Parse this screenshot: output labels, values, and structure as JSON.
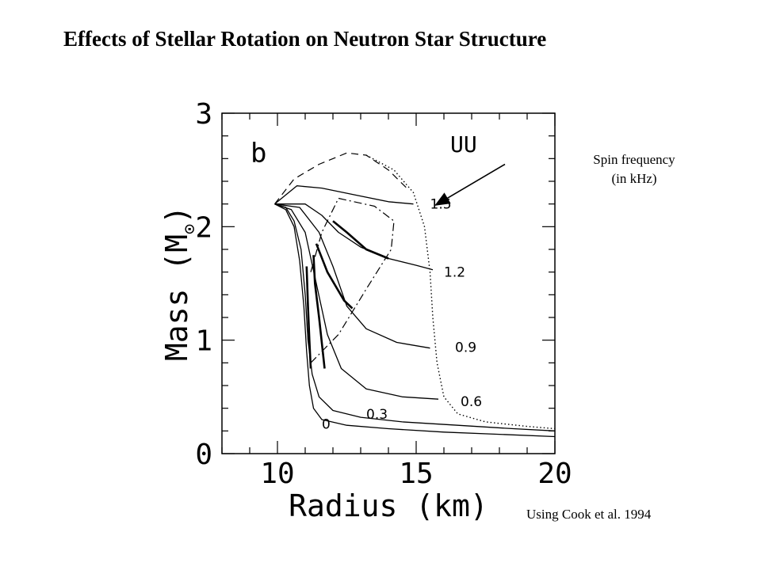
{
  "slide": {
    "title": "Effects of Stellar Rotation on Neutron Star Structure",
    "annotation_line1": "Spin frequency",
    "annotation_line2": "(in kHz)",
    "credit": "Using Cook et al. 1994"
  },
  "chart_data": {
    "type": "line",
    "title": "",
    "panel_label": "b",
    "eos_label": "UU",
    "xlabel": "Radius (km)",
    "ylabel": "Mass (M",
    "ylabel_symbol": "⊙",
    "xlim": [
      8,
      20
    ],
    "ylim": [
      0,
      3
    ],
    "xticks": [
      10,
      15,
      20
    ],
    "yticks": [
      0,
      1,
      2,
      3
    ],
    "grid": false,
    "series": [
      {
        "name": "0",
        "style": "solid",
        "label_at": [
          11.6,
          0.26
        ],
        "x": [
          9.9,
          10.3,
          10.6,
          10.8,
          10.95,
          11.05,
          11.15,
          11.3,
          11.6,
          12.5,
          14,
          16,
          18,
          20
        ],
        "y": [
          2.2,
          2.15,
          2.0,
          1.7,
          1.3,
          0.9,
          0.6,
          0.4,
          0.3,
          0.25,
          0.22,
          0.19,
          0.17,
          0.15
        ]
      },
      {
        "name": "0.3",
        "style": "solid",
        "label_at": [
          13.2,
          0.35
        ],
        "x": [
          9.9,
          10.3,
          10.6,
          10.85,
          11.0,
          11.1,
          11.25,
          11.5,
          12.0,
          13,
          14.5,
          16.5,
          18.5,
          20
        ],
        "y": [
          2.2,
          2.17,
          2.05,
          1.8,
          1.4,
          1.0,
          0.7,
          0.5,
          0.38,
          0.32,
          0.28,
          0.25,
          0.22,
          0.2
        ]
      },
      {
        "name": "0.6",
        "style": "solid",
        "label_at": [
          16.6,
          0.46
        ],
        "x": [
          9.9,
          10.5,
          11.0,
          11.4,
          11.8,
          12.3,
          13.2,
          14.5,
          15.8
        ],
        "y": [
          2.2,
          2.15,
          1.95,
          1.5,
          1.05,
          0.75,
          0.57,
          0.5,
          0.48
        ]
      },
      {
        "name": "0.9",
        "style": "solid",
        "label_at": [
          16.4,
          0.94
        ],
        "x": [
          9.9,
          10.8,
          11.5,
          12.0,
          12.5,
          13.2,
          14.3,
          15.5
        ],
        "y": [
          2.2,
          2.17,
          1.95,
          1.65,
          1.3,
          1.1,
          0.98,
          0.93
        ]
      },
      {
        "name": "1.2",
        "style": "solid",
        "label_at": [
          16.0,
          1.6
        ],
        "x": [
          9.9,
          11.0,
          11.6,
          12.2,
          13.0,
          14.0,
          15.0,
          15.6
        ],
        "y": [
          2.2,
          2.2,
          2.1,
          1.95,
          1.82,
          1.72,
          1.66,
          1.62
        ]
      },
      {
        "name": "1.5",
        "style": "solid",
        "label_at": [
          15.5,
          2.2
        ],
        "x": [
          9.9,
          10.7,
          11.6,
          12.8,
          14.0,
          14.9
        ],
        "y": [
          2.2,
          2.36,
          2.34,
          2.28,
          2.22,
          2.2
        ]
      },
      {
        "name": "",
        "style": "dash",
        "x": [
          9.9,
          10.6,
          11.5,
          12.5,
          13.2,
          14.0,
          14.7
        ],
        "y": [
          2.2,
          2.42,
          2.55,
          2.65,
          2.63,
          2.5,
          2.33
        ]
      },
      {
        "name": "",
        "style": "dot",
        "x": [
          13.2,
          14.2,
          14.9,
          15.3,
          15.5,
          15.6,
          15.75,
          16.0,
          16.5,
          17.5,
          19.0,
          20.0
        ],
        "y": [
          2.63,
          2.5,
          2.3,
          2.0,
          1.6,
          1.2,
          0.8,
          0.5,
          0.35,
          0.28,
          0.24,
          0.22
        ]
      },
      {
        "name": "",
        "style": "dashdot",
        "x": [
          11.2,
          11.6,
          12.2,
          13.5,
          14.2,
          14.1,
          13.2,
          12.2,
          11.2
        ],
        "y": [
          1.6,
          1.95,
          2.25,
          2.18,
          2.05,
          1.8,
          1.45,
          1.05,
          0.8
        ]
      },
      {
        "name": "",
        "style": "thick",
        "x": [
          11.05,
          11.1,
          11.15,
          11.2
        ],
        "y": [
          1.65,
          1.3,
          1.0,
          0.75
        ]
      },
      {
        "name": "",
        "style": "thick",
        "x": [
          11.3,
          11.35,
          11.5,
          11.7
        ],
        "y": [
          1.75,
          1.5,
          1.2,
          0.75
        ]
      },
      {
        "name": "",
        "style": "thick",
        "x": [
          11.4,
          11.8,
          12.4,
          12.7
        ],
        "y": [
          1.85,
          1.6,
          1.35,
          1.28
        ]
      },
      {
        "name": "",
        "style": "thick",
        "x": [
          12.0,
          12.5,
          13.2,
          14.0
        ],
        "y": [
          2.05,
          1.95,
          1.8,
          1.72
        ]
      }
    ],
    "arrow": {
      "from": [
        18.2,
        2.55
      ],
      "to": [
        15.7,
        2.19
      ]
    }
  }
}
